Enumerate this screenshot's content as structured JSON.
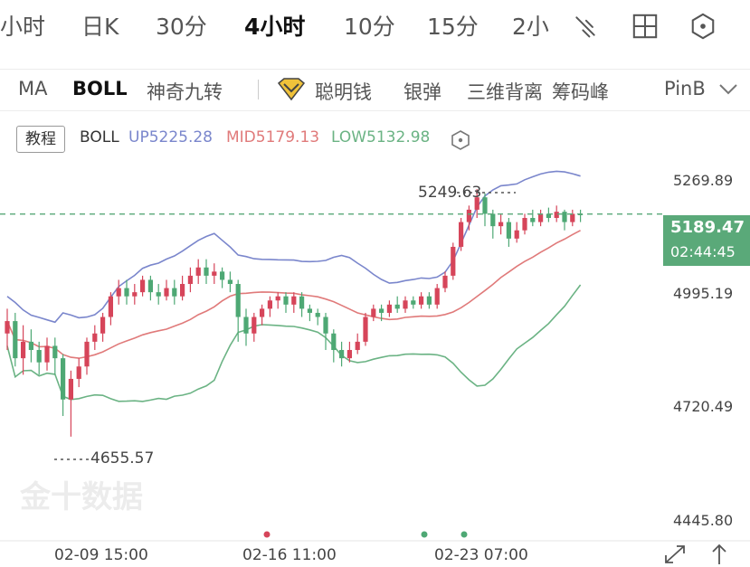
{
  "tabs": [
    {
      "label": "小时",
      "active": false
    },
    {
      "label": "日K",
      "active": false
    },
    {
      "label": "30分",
      "active": false
    },
    {
      "label": "4小时",
      "active": true
    },
    {
      "label": "10分",
      "active": false
    },
    {
      "label": "15分",
      "active": false
    },
    {
      "label": "2小",
      "active": false
    }
  ],
  "tools": [
    "draw-pen-icon",
    "grid-layout-icon",
    "hexagon-settings-icon"
  ],
  "indicators": [
    {
      "label": "MA",
      "active": false
    },
    {
      "label": "BOLL",
      "active": true
    },
    {
      "label": "神奇九转",
      "active": false
    },
    {
      "label": "聪明钱",
      "active": false
    },
    {
      "label": "银弹",
      "active": false
    },
    {
      "label": "三维背离",
      "active": false
    },
    {
      "label": "筹码峰",
      "active": false
    },
    {
      "label": "PinB",
      "active": false
    }
  ],
  "legend": {
    "tutorial": "教程",
    "name": "BOLL",
    "up": "UP5225.28",
    "mid": "MID5179.13",
    "low": "LOW5132.98"
  },
  "colors": {
    "up_band": "#7a86cc",
    "mid_band": "#e07a7a",
    "low_band": "#6bb384",
    "bull": "#d6455a",
    "bear": "#4ea874",
    "price_tag": "#5aa979"
  },
  "current_price": {
    "price": "5189.47",
    "countdown": "02:44:45"
  },
  "watermark": "金十数据",
  "chart_data": {
    "type": "candlestick",
    "y_ticks": [
      "5269.89",
      "4995.19",
      "4720.49",
      "4445.80"
    ],
    "x_ticks": [
      "02-09 15:00",
      "02-16 11:00",
      "02-23 07:00"
    ],
    "ylim": [
      4445.8,
      5269.89
    ],
    "annotations": {
      "high": "5249.63",
      "low": "4655.57"
    },
    "current_price": 5189.47,
    "grid": false,
    "event_markers": [
      {
        "color": "#d6455a"
      },
      {
        "color": "#4ea874"
      },
      {
        "color": "#4ea874"
      }
    ],
    "candles": [
      {
        "o": 4900,
        "c": 4930,
        "h": 4960,
        "l": 4860
      },
      {
        "o": 4930,
        "c": 4840,
        "h": 4950,
        "l": 4820
      },
      {
        "o": 4840,
        "c": 4880,
        "h": 4920,
        "l": 4800
      },
      {
        "o": 4880,
        "c": 4860,
        "h": 4910,
        "l": 4830
      },
      {
        "o": 4860,
        "c": 4830,
        "h": 4880,
        "l": 4800
      },
      {
        "o": 4830,
        "c": 4870,
        "h": 4890,
        "l": 4810
      },
      {
        "o": 4870,
        "c": 4840,
        "h": 4890,
        "l": 4800
      },
      {
        "o": 4840,
        "c": 4740,
        "h": 4850,
        "l": 4700
      },
      {
        "o": 4740,
        "c": 4790,
        "h": 4810,
        "l": 4650
      },
      {
        "o": 4790,
        "c": 4820,
        "h": 4840,
        "l": 4770
      },
      {
        "o": 4820,
        "c": 4880,
        "h": 4890,
        "l": 4800
      },
      {
        "o": 4880,
        "c": 4900,
        "h": 4920,
        "l": 4860
      },
      {
        "o": 4900,
        "c": 4940,
        "h": 4950,
        "l": 4880
      },
      {
        "o": 4940,
        "c": 4990,
        "h": 5000,
        "l": 4920
      },
      {
        "o": 4990,
        "c": 5010,
        "h": 5030,
        "l": 4970
      },
      {
        "o": 5010,
        "c": 4990,
        "h": 5030,
        "l": 4970
      },
      {
        "o": 4990,
        "c": 5000,
        "h": 5020,
        "l": 4970
      },
      {
        "o": 5000,
        "c": 5030,
        "h": 5040,
        "l": 4990
      },
      {
        "o": 5030,
        "c": 5000,
        "h": 5040,
        "l": 4980
      },
      {
        "o": 5000,
        "c": 4990,
        "h": 5020,
        "l": 4970
      },
      {
        "o": 4990,
        "c": 5010,
        "h": 5030,
        "l": 4980
      },
      {
        "o": 5010,
        "c": 4990,
        "h": 5030,
        "l": 4970
      },
      {
        "o": 4990,
        "c": 5020,
        "h": 5040,
        "l": 4980
      },
      {
        "o": 5020,
        "c": 5040,
        "h": 5060,
        "l": 5000
      },
      {
        "o": 5040,
        "c": 5060,
        "h": 5080,
        "l": 5020
      },
      {
        "o": 5060,
        "c": 5040,
        "h": 5080,
        "l": 5020
      },
      {
        "o": 5040,
        "c": 5050,
        "h": 5070,
        "l": 5020
      },
      {
        "o": 5050,
        "c": 5030,
        "h": 5060,
        "l": 5010
      },
      {
        "o": 5030,
        "c": 5020,
        "h": 5050,
        "l": 5000
      },
      {
        "o": 5020,
        "c": 4940,
        "h": 5030,
        "l": 4880
      },
      {
        "o": 4940,
        "c": 4900,
        "h": 4960,
        "l": 4870
      },
      {
        "o": 4900,
        "c": 4940,
        "h": 4950,
        "l": 4880
      },
      {
        "o": 4940,
        "c": 4960,
        "h": 4970,
        "l": 4920
      },
      {
        "o": 4960,
        "c": 4980,
        "h": 4990,
        "l": 4940
      },
      {
        "o": 4980,
        "c": 4990,
        "h": 5000,
        "l": 4960
      },
      {
        "o": 4990,
        "c": 4970,
        "h": 5000,
        "l": 4950
      },
      {
        "o": 4970,
        "c": 4990,
        "h": 5000,
        "l": 4950
      },
      {
        "o": 4990,
        "c": 4960,
        "h": 5000,
        "l": 4940
      },
      {
        "o": 4960,
        "c": 4950,
        "h": 4970,
        "l": 4930
      },
      {
        "o": 4950,
        "c": 4940,
        "h": 4960,
        "l": 4920
      },
      {
        "o": 4940,
        "c": 4900,
        "h": 4950,
        "l": 4860
      },
      {
        "o": 4900,
        "c": 4860,
        "h": 4910,
        "l": 4830
      },
      {
        "o": 4860,
        "c": 4840,
        "h": 4880,
        "l": 4820
      },
      {
        "o": 4840,
        "c": 4860,
        "h": 4880,
        "l": 4830
      },
      {
        "o": 4860,
        "c": 4880,
        "h": 4900,
        "l": 4850
      },
      {
        "o": 4880,
        "c": 4940,
        "h": 4950,
        "l": 4870
      },
      {
        "o": 4940,
        "c": 4960,
        "h": 4970,
        "l": 4930
      },
      {
        "o": 4960,
        "c": 4950,
        "h": 4970,
        "l": 4930
      },
      {
        "o": 4950,
        "c": 4970,
        "h": 4980,
        "l": 4940
      },
      {
        "o": 4970,
        "c": 4960,
        "h": 4990,
        "l": 4950
      },
      {
        "o": 4960,
        "c": 4980,
        "h": 4990,
        "l": 4950
      },
      {
        "o": 4980,
        "c": 4970,
        "h": 4990,
        "l": 4960
      },
      {
        "o": 4970,
        "c": 4990,
        "h": 5000,
        "l": 4960
      },
      {
        "o": 4990,
        "c": 4970,
        "h": 5000,
        "l": 4960
      },
      {
        "o": 4970,
        "c": 5010,
        "h": 5020,
        "l": 4960
      },
      {
        "o": 5010,
        "c": 5040,
        "h": 5050,
        "l": 5000
      },
      {
        "o": 5040,
        "c": 5110,
        "h": 5120,
        "l": 5030
      },
      {
        "o": 5110,
        "c": 5170,
        "h": 5180,
        "l": 5100
      },
      {
        "o": 5170,
        "c": 5200,
        "h": 5210,
        "l": 5150
      },
      {
        "o": 5200,
        "c": 5230,
        "h": 5250,
        "l": 5180
      },
      {
        "o": 5230,
        "c": 5190,
        "h": 5240,
        "l": 5160
      },
      {
        "o": 5190,
        "c": 5160,
        "h": 5200,
        "l": 5130
      },
      {
        "o": 5160,
        "c": 5170,
        "h": 5190,
        "l": 5140
      },
      {
        "o": 5170,
        "c": 5130,
        "h": 5180,
        "l": 5110
      },
      {
        "o": 5130,
        "c": 5150,
        "h": 5170,
        "l": 5120
      },
      {
        "o": 5150,
        "c": 5180,
        "h": 5190,
        "l": 5140
      },
      {
        "o": 5180,
        "c": 5170,
        "h": 5200,
        "l": 5160
      },
      {
        "o": 5170,
        "c": 5190,
        "h": 5200,
        "l": 5160
      },
      {
        "o": 5190,
        "c": 5180,
        "h": 5205,
        "l": 5170
      },
      {
        "o": 5180,
        "c": 5195,
        "h": 5210,
        "l": 5170
      },
      {
        "o": 5195,
        "c": 5170,
        "h": 5200,
        "l": 5150
      },
      {
        "o": 5170,
        "c": 5190,
        "h": 5200,
        "l": 5160
      },
      {
        "o": 5190,
        "c": 5189.47,
        "h": 5200,
        "l": 5170
      }
    ]
  }
}
